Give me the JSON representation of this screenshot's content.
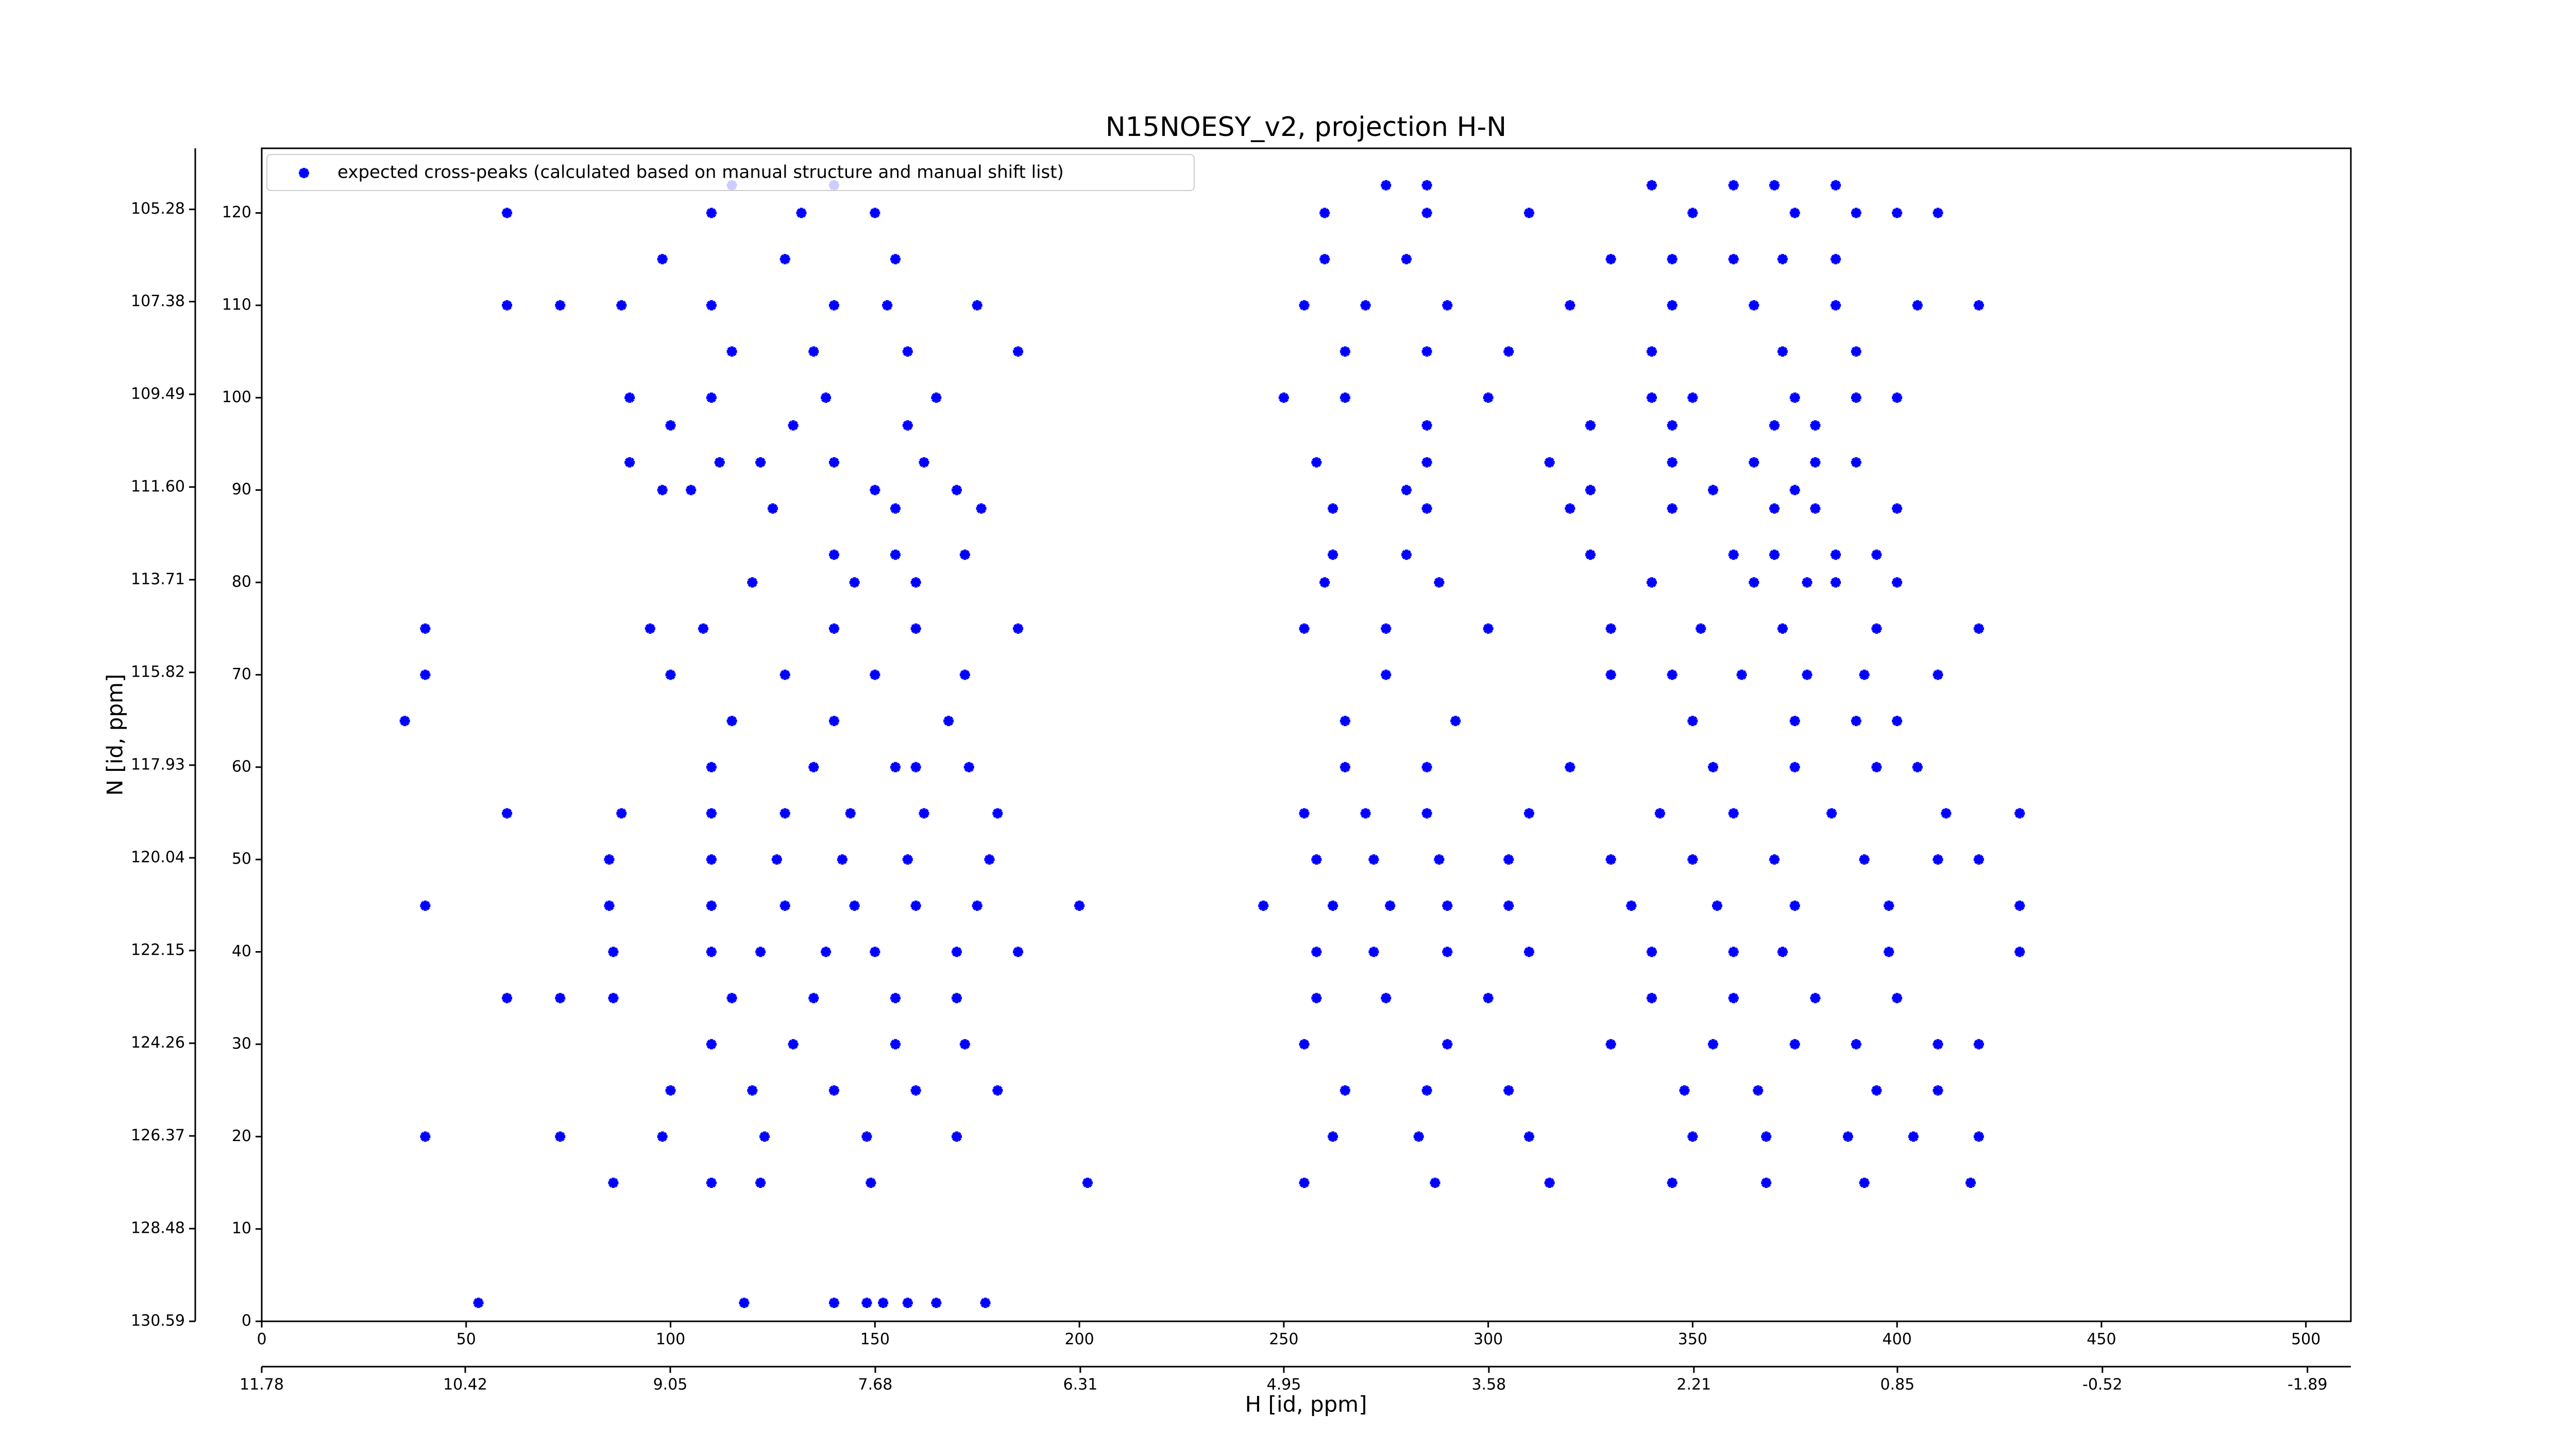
{
  "chart_data": {
    "type": "scatter",
    "title": "N15NOESY_v2, projection H-N",
    "xlabel": "H [id, ppm]",
    "ylabel": "N [id, ppm]",
    "legend_position": "upper left",
    "xlim": [
      0,
      511
    ],
    "xticks": [
      0,
      50,
      100,
      150,
      200,
      250,
      300,
      350,
      400,
      450,
      500
    ],
    "ylim": [
      0,
      127
    ],
    "yticks": [
      0,
      10,
      20,
      30,
      40,
      50,
      60,
      70,
      80,
      90,
      100,
      110,
      120
    ],
    "x2lim": [
      11.78,
      -2.18
    ],
    "x2ticks": [
      11.78,
      10.42,
      9.05,
      7.68,
      6.31,
      4.95,
      3.58,
      2.21,
      0.85,
      -0.52,
      -1.89
    ],
    "y2lim": [
      130.59,
      103.89
    ],
    "y2ticks": [
      105.28,
      107.38,
      109.49,
      {
        "value": 111.6,
        "label": "111.60"
      },
      113.71,
      115.82,
      117.93,
      120.04,
      122.15,
      124.26,
      126.37,
      128.48,
      130.59
    ],
    "series": [
      {
        "name": "expected cross-peaks (calculated based on manual structure and manual shift list)",
        "color": "#0000ff",
        "x": [
          53,
          118,
          140,
          148,
          152,
          158,
          165,
          177,
          86,
          110,
          122,
          149,
          202,
          255,
          287,
          315,
          345,
          368,
          392,
          418,
          40,
          73,
          98,
          123,
          148,
          170,
          262,
          283,
          310,
          350,
          368,
          388,
          404,
          420,
          100,
          120,
          140,
          160,
          180,
          265,
          285,
          305,
          348,
          366,
          395,
          410,
          110,
          130,
          155,
          172,
          255,
          290,
          330,
          355,
          375,
          390,
          410,
          420,
          60,
          73,
          86,
          115,
          135,
          155,
          170,
          258,
          275,
          300,
          340,
          360,
          380,
          400,
          86,
          110,
          122,
          138,
          150,
          170,
          185,
          258,
          272,
          290,
          310,
          340,
          360,
          372,
          398,
          430,
          40,
          85,
          110,
          128,
          145,
          160,
          175,
          200,
          245,
          262,
          276,
          290,
          305,
          335,
          356,
          375,
          398,
          430,
          85,
          110,
          126,
          142,
          158,
          178,
          258,
          272,
          288,
          305,
          330,
          350,
          370,
          392,
          410,
          420,
          60,
          88,
          110,
          128,
          144,
          162,
          180,
          255,
          270,
          285,
          310,
          342,
          360,
          384,
          412,
          430,
          110,
          135,
          155,
          173,
          265,
          285,
          320,
          355,
          375,
          395,
          405,
          160,
          35,
          115,
          140,
          168,
          265,
          292,
          350,
          375,
          390,
          400,
          40,
          100,
          128,
          150,
          172,
          275,
          330,
          345,
          362,
          378,
          392,
          410,
          40,
          95,
          108,
          140,
          160,
          185,
          255,
          275,
          300,
          330,
          352,
          372,
          395,
          420,
          120,
          145,
          160,
          260,
          288,
          340,
          365,
          378,
          385,
          400,
          140,
          155,
          172,
          262,
          280,
          325,
          360,
          370,
          385,
          395,
          125,
          155,
          176,
          262,
          285,
          320,
          345,
          370,
          380,
          400,
          98,
          105,
          150,
          170,
          280,
          325,
          355,
          375,
          90,
          112,
          122,
          140,
          162,
          258,
          285,
          315,
          345,
          365,
          380,
          390,
          100,
          130,
          158,
          285,
          325,
          345,
          370,
          380,
          90,
          110,
          138,
          165,
          250,
          265,
          300,
          340,
          350,
          375,
          390,
          400,
          115,
          135,
          158,
          185,
          265,
          285,
          305,
          340,
          372,
          390,
          60,
          73,
          88,
          110,
          140,
          153,
          175,
          255,
          270,
          290,
          320,
          345,
          365,
          385,
          405,
          420,
          98,
          128,
          155,
          260,
          280,
          330,
          345,
          360,
          372,
          385,
          60,
          110,
          132,
          150,
          260,
          285,
          310,
          350,
          375,
          390,
          400,
          410,
          115,
          140,
          275,
          285,
          340,
          360,
          370,
          385
        ],
        "y": [
          2,
          2,
          2,
          2,
          2,
          2,
          2,
          2,
          15,
          15,
          15,
          15,
          15,
          15,
          15,
          15,
          15,
          15,
          15,
          15,
          20,
          20,
          20,
          20,
          20,
          20,
          20,
          20,
          20,
          20,
          20,
          20,
          20,
          20,
          25,
          25,
          25,
          25,
          25,
          25,
          25,
          25,
          25,
          25,
          25,
          25,
          30,
          30,
          30,
          30,
          30,
          30,
          30,
          30,
          30,
          30,
          30,
          30,
          35,
          35,
          35,
          35,
          35,
          35,
          35,
          35,
          35,
          35,
          35,
          35,
          35,
          35,
          40,
          40,
          40,
          40,
          40,
          40,
          40,
          40,
          40,
          40,
          40,
          40,
          40,
          40,
          40,
          40,
          45,
          45,
          45,
          45,
          45,
          45,
          45,
          45,
          45,
          45,
          45,
          45,
          45,
          45,
          45,
          45,
          45,
          45,
          50,
          50,
          50,
          50,
          50,
          50,
          50,
          50,
          50,
          50,
          50,
          50,
          50,
          50,
          50,
          50,
          55,
          55,
          55,
          55,
          55,
          55,
          55,
          55,
          55,
          55,
          55,
          55,
          55,
          55,
          55,
          55,
          60,
          60,
          60,
          60,
          60,
          60,
          60,
          60,
          60,
          60,
          60,
          60,
          65,
          65,
          65,
          65,
          65,
          65,
          65,
          65,
          65,
          65,
          70,
          70,
          70,
          70,
          70,
          70,
          70,
          70,
          70,
          70,
          70,
          70,
          75,
          75,
          75,
          75,
          75,
          75,
          75,
          75,
          75,
          75,
          75,
          75,
          75,
          75,
          80,
          80,
          80,
          80,
          80,
          80,
          80,
          80,
          80,
          80,
          83,
          83,
          83,
          83,
          83,
          83,
          83,
          83,
          83,
          83,
          88,
          88,
          88,
          88,
          88,
          88,
          88,
          88,
          88,
          88,
          90,
          90,
          90,
          90,
          90,
          90,
          90,
          90,
          93,
          93,
          93,
          93,
          93,
          93,
          93,
          93,
          93,
          93,
          93,
          93,
          97,
          97,
          97,
          97,
          97,
          97,
          97,
          97,
          100,
          100,
          100,
          100,
          100,
          100,
          100,
          100,
          100,
          100,
          100,
          100,
          105,
          105,
          105,
          105,
          105,
          105,
          105,
          105,
          105,
          105,
          110,
          110,
          110,
          110,
          110,
          110,
          110,
          110,
          110,
          110,
          110,
          110,
          110,
          110,
          110,
          110,
          115,
          115,
          115,
          115,
          115,
          115,
          115,
          115,
          115,
          115,
          120,
          120,
          120,
          120,
          120,
          120,
          120,
          120,
          120,
          120,
          120,
          120,
          123,
          123,
          123,
          123,
          123,
          123,
          123,
          123
        ]
      }
    ]
  }
}
